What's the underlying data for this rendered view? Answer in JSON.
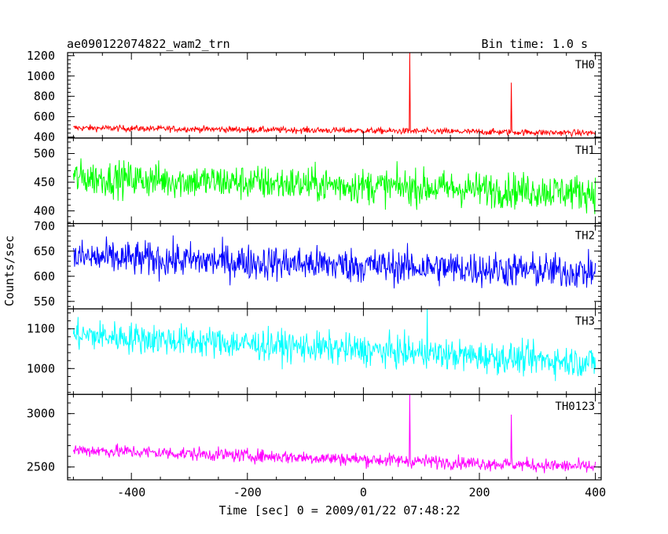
{
  "chart_data": {
    "type": "line",
    "title_left": "ae090122074822_wam2_trn",
    "title_right": "Bin time: 1.0 s",
    "xlabel": "Time [sec] 0 = 2009/01/22 07:48:22",
    "ylabel": "Counts/sec",
    "xlim": [
      -510,
      410
    ],
    "x_ticks": [
      -400,
      -200,
      0,
      200,
      400
    ],
    "x_start": -500,
    "x_end": 400,
    "bin_time": 1.0,
    "panels": [
      {
        "name": "TH0",
        "color": "#ff0000",
        "ylim": [
          390,
          1230
        ],
        "y_ticks": [
          400,
          600,
          800,
          1000,
          1200
        ],
        "baseline_start": 490,
        "baseline_end": 440,
        "noise": 22,
        "spikes": [
          {
            "x": 80,
            "y": 1230
          },
          {
            "x": 255,
            "y": 935
          }
        ]
      },
      {
        "name": "TH1",
        "color": "#00ff00",
        "ylim": [
          378,
          527
        ],
        "y_ticks": [
          400,
          450,
          500
        ],
        "baseline_start": 458,
        "baseline_end": 432,
        "noise": 22,
        "spikes": []
      },
      {
        "name": "TH2",
        "color": "#0000ff",
        "ylim": [
          535,
          705
        ],
        "y_ticks": [
          550,
          600,
          650,
          700
        ],
        "baseline_start": 638,
        "baseline_end": 608,
        "noise": 25,
        "spikes": []
      },
      {
        "name": "TH3",
        "color": "#00ffff",
        "ylim": [
          935,
          1150
        ],
        "y_ticks": [
          1000,
          1100
        ],
        "baseline_start": 1085,
        "baseline_end": 1015,
        "noise": 28,
        "spikes": [
          {
            "x": 110,
            "y": 1150
          }
        ]
      },
      {
        "name": "TH0123",
        "color": "#ff00ff",
        "ylim": [
          2380,
          3180
        ],
        "y_ticks": [
          2500,
          3000
        ],
        "baseline_start": 2660,
        "baseline_end": 2500,
        "noise": 45,
        "spikes": [
          {
            "x": 80,
            "y": 3180
          },
          {
            "x": 255,
            "y": 2990
          }
        ]
      }
    ]
  }
}
